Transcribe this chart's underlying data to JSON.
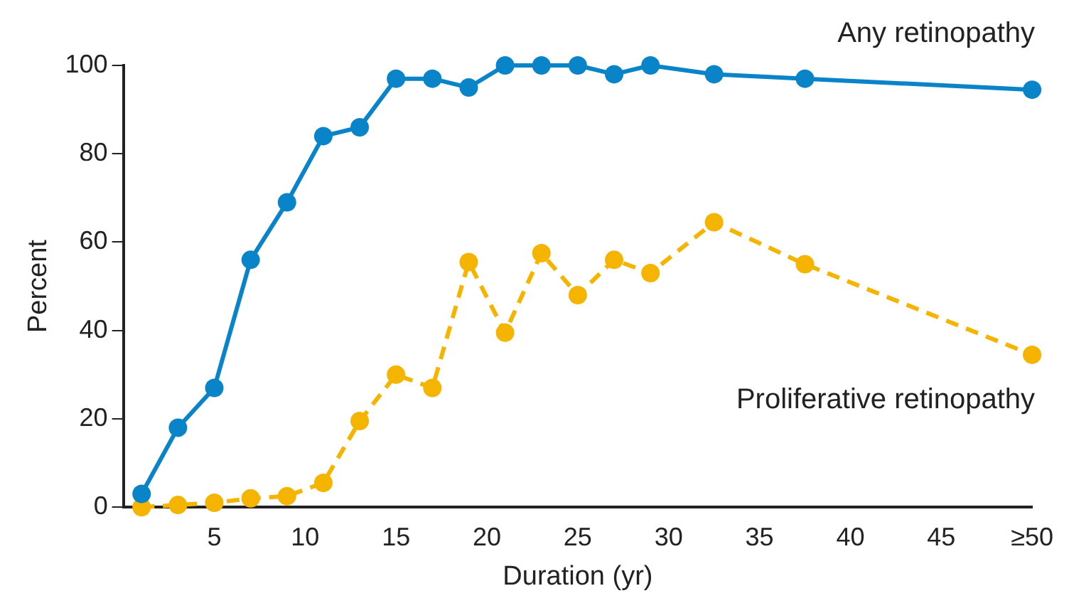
{
  "chart_data": {
    "type": "line",
    "xlabel": "Duration (yr)",
    "ylabel": "Percent",
    "xlim": [
      0,
      50
    ],
    "xticks": [
      5,
      10,
      15,
      20,
      25,
      30,
      35,
      40,
      45,
      {
        "value": 50,
        "label": "≥50"
      }
    ],
    "ylim": [
      0,
      100
    ],
    "yticks": [
      0,
      20,
      40,
      60,
      80,
      100
    ],
    "grid": false,
    "legend": false,
    "marker": "circle",
    "series": [
      {
        "name": "Any retinopathy",
        "color": "#0a84c8",
        "line_style": "solid",
        "x": [
          1,
          3,
          5,
          7,
          9,
          11,
          13,
          15,
          17,
          19,
          21,
          23,
          25,
          27,
          29,
          32.5,
          37.5,
          50
        ],
        "values": [
          3,
          18,
          27,
          56,
          69,
          84,
          86,
          97,
          97,
          95,
          100,
          100,
          100,
          98,
          100,
          98,
          97,
          94.5
        ]
      },
      {
        "name": "Proliferative retinopathy",
        "color": "#f5b400",
        "line_style": "dashed",
        "x": [
          1,
          3,
          5,
          7,
          9,
          11,
          13,
          15,
          17,
          19,
          21,
          23,
          25,
          27,
          29,
          32.5,
          37.5,
          50
        ],
        "values": [
          0,
          0.5,
          1,
          2,
          2.5,
          5.5,
          19.5,
          30,
          27,
          55.5,
          39.5,
          57.5,
          48,
          56,
          53,
          64.5,
          55,
          34.5
        ]
      }
    ]
  }
}
